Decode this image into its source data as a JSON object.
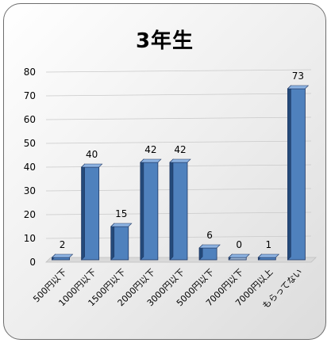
{
  "chart_data": {
    "type": "bar",
    "title": "3年生",
    "categories": [
      "500円以下",
      "1000円以下",
      "1500円以下",
      "2000円以下",
      "3000円以下",
      "5000円以下",
      "7000円以下",
      "7000円以上",
      "もらってない"
    ],
    "values": [
      2,
      40,
      15,
      42,
      42,
      6,
      0,
      1,
      73
    ],
    "ylim": [
      0,
      80
    ],
    "yticks": [
      0,
      10,
      20,
      30,
      40,
      50,
      60,
      70,
      80
    ],
    "grid": true,
    "data_labels": true,
    "legend": "none",
    "colors": {
      "bar_front": "#4f81bd",
      "bar_top": "#8db3e2",
      "bar_side": "#244a7a",
      "outline": "#203864",
      "grid": "#c9c9c9",
      "axis_text": "#000000"
    }
  }
}
